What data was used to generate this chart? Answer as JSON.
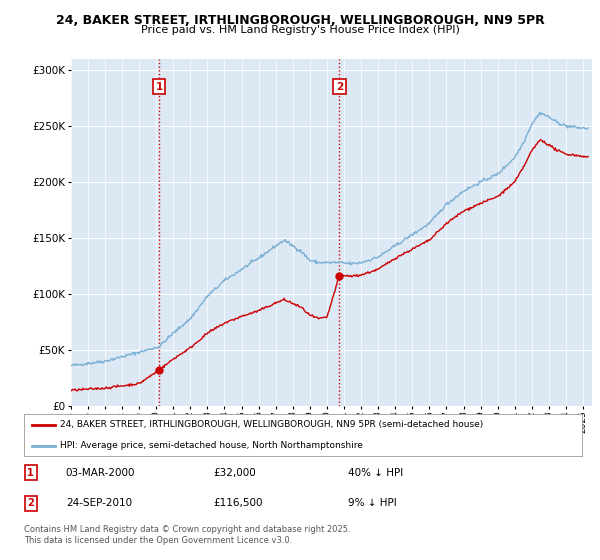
{
  "title1": "24, BAKER STREET, IRTHLINGBOROUGH, WELLINGBOROUGH, NN9 5PR",
  "title2": "Price paid vs. HM Land Registry's House Price Index (HPI)",
  "plot_bg": "#dce9f5",
  "line1_color": "#cc0000",
  "line2_color": "#7bafd4",
  "vline_color": "#cc0000",
  "transaction1_date": 2000.17,
  "transaction1_price": 32000,
  "transaction2_date": 2010.73,
  "transaction2_price": 116500,
  "xmin": 1995,
  "xmax": 2025.5,
  "ymin": 0,
  "ymax": 310000,
  "yticks": [
    0,
    50000,
    100000,
    150000,
    200000,
    250000,
    300000
  ],
  "ytick_labels": [
    "£0",
    "£50K",
    "£100K",
    "£150K",
    "£200K",
    "£250K",
    "£300K"
  ],
  "legend_line1": "24, BAKER STREET, IRTHLINGBOROUGH, WELLINGBOROUGH, NN9 5PR (semi-detached house)",
  "legend_line2": "HPI: Average price, semi-detached house, North Northamptonshire",
  "note1_label": "1",
  "note1_date": "03-MAR-2000",
  "note1_price": "£32,000",
  "note1_hpi": "40% ↓ HPI",
  "note2_label": "2",
  "note2_date": "24-SEP-2010",
  "note2_price": "£116,500",
  "note2_hpi": "9% ↓ HPI",
  "footer": "Contains HM Land Registry data © Crown copyright and database right 2025.\nThis data is licensed under the Open Government Licence v3.0."
}
